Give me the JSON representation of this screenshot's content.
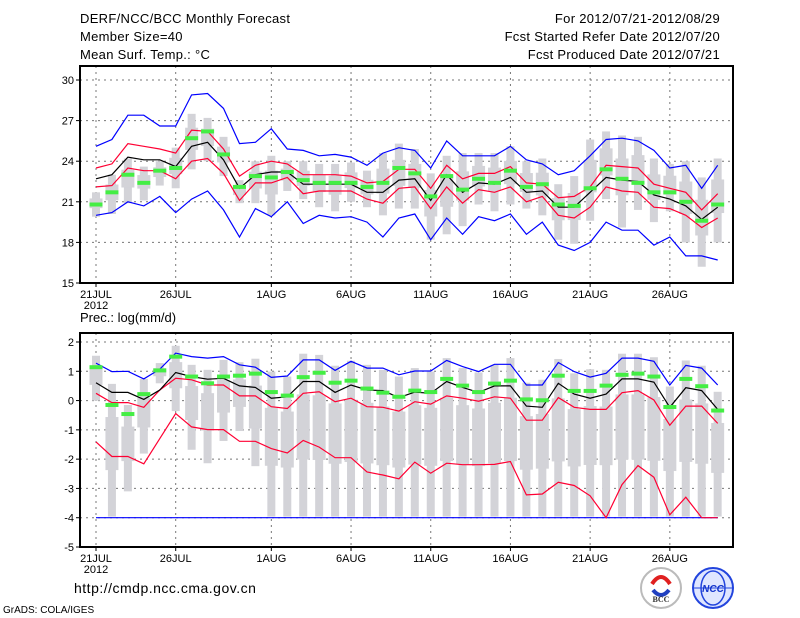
{
  "header": {
    "title": "DERF/NCC/BCC Monthly Forecast",
    "member_size": "Member Size=40",
    "variable": "Mean Surf. Temp.: °C",
    "period": "For 2012/07/21-2012/08/29",
    "refer_date": "Fcst Started Refer Date 2012/07/20",
    "produced_date": "Fcst Produced Date 2012/07/21"
  },
  "footer": {
    "url": "http://cmdp.ncc.cma.gov.cn",
    "grads": "GrADS: COLA/IGES",
    "logos": [
      "BCC",
      "NCC"
    ]
  },
  "colors": {
    "envelope": "#0000ff",
    "spread": "#ff0033",
    "mean": "#000000",
    "obs": "#44ee44",
    "box": "#d3d3d8"
  },
  "chart_data": [
    {
      "type": "line",
      "title": "Mean Surf. Temp.: °C",
      "ylim": [
        15,
        30
      ],
      "yticks": [
        "15",
        "18",
        "21",
        "24",
        "27",
        "30"
      ],
      "ytick_values": [
        15,
        18,
        21,
        24,
        27,
        30
      ],
      "xtick_labels": [
        "21JUL",
        "26JUL",
        "1AUG",
        "6AUG",
        "11AUG",
        "16AUG",
        "21AUG",
        "26AUG"
      ],
      "xtick_days": [
        0,
        5,
        11,
        16,
        21,
        26,
        31,
        36
      ],
      "year_label": "2012",
      "days": 40,
      "series": [
        {
          "name": "max",
          "color": "blue",
          "values": [
            25.1,
            25.6,
            27.4,
            27.4,
            26.6,
            26.6,
            28.9,
            29.0,
            27.9,
            25.3,
            25.4,
            26.4,
            24.9,
            24.8,
            24.4,
            24.5,
            24.3,
            23.7,
            24.6,
            25.0,
            24.8,
            23.5,
            25.5,
            24.4,
            24.4,
            24.4,
            25.1,
            24.1,
            23.8,
            23.0,
            23.3,
            24.4,
            25.6,
            25.7,
            25.5,
            24.8,
            23.5,
            23.7,
            22.0,
            23.7
          ]
        },
        {
          "name": "min",
          "color": "blue",
          "values": [
            20.0,
            20.2,
            21.0,
            20.7,
            21.4,
            20.2,
            21.2,
            21.8,
            20.4,
            18.4,
            20.5,
            19.9,
            21.0,
            19.4,
            20.0,
            19.8,
            19.9,
            19.5,
            18.4,
            19.8,
            20.1,
            18.2,
            19.8,
            18.6,
            19.9,
            19.6,
            20.1,
            18.6,
            19.5,
            17.8,
            17.4,
            18.0,
            19.5,
            18.9,
            18.9,
            17.8,
            18.4,
            17.0,
            17.0,
            16.7
          ]
        },
        {
          "name": "upper",
          "color": "red",
          "values": [
            23.5,
            23.8,
            25.3,
            25.1,
            24.9,
            24.6,
            26.3,
            26.2,
            24.9,
            22.9,
            23.7,
            24.0,
            23.8,
            23.0,
            23.0,
            23.0,
            22.9,
            22.4,
            22.5,
            23.4,
            23.4,
            22.0,
            23.7,
            22.7,
            23.1,
            23.1,
            23.6,
            22.4,
            22.3,
            21.3,
            21.4,
            22.1,
            23.7,
            23.6,
            23.5,
            22.3,
            22.0,
            21.7,
            20.4,
            21.6
          ]
        },
        {
          "name": "lower",
          "color": "red",
          "values": [
            22.1,
            22.2,
            23.5,
            23.3,
            23.3,
            22.7,
            24.0,
            24.2,
            23.1,
            21.1,
            22.4,
            22.4,
            22.8,
            21.6,
            21.8,
            21.8,
            21.8,
            21.2,
            20.9,
            22.0,
            22.1,
            20.5,
            22.1,
            20.9,
            21.9,
            21.7,
            22.1,
            21.0,
            21.4,
            20.0,
            19.8,
            20.6,
            22.1,
            21.8,
            21.7,
            20.6,
            20.5,
            20.0,
            19.1,
            19.8
          ]
        },
        {
          "name": "ensemble_mean",
          "color": "black",
          "values": [
            22.7,
            23.0,
            24.3,
            24.1,
            24.1,
            23.6,
            25.1,
            25.4,
            24.1,
            22.0,
            23.0,
            23.2,
            23.2,
            22.3,
            22.3,
            22.3,
            22.3,
            21.7,
            21.7,
            22.6,
            22.7,
            21.1,
            23.0,
            21.7,
            22.4,
            22.3,
            22.8,
            21.7,
            21.8,
            20.6,
            20.6,
            21.7,
            22.8,
            22.6,
            22.5,
            21.5,
            21.2,
            20.7,
            19.7,
            20.6
          ]
        },
        {
          "name": "observed",
          "color": "green",
          "values": [
            20.8,
            21.7,
            23.0,
            22.4,
            23.3,
            23.5,
            25.7,
            26.2,
            24.5,
            22.1,
            22.9,
            22.8,
            23.2,
            22.6,
            22.4,
            22.4,
            22.4,
            22.1,
            22.4,
            23.5,
            23.1,
            21.4,
            22.9,
            21.9,
            22.7,
            22.4,
            23.3,
            22.1,
            22.3,
            20.8,
            20.7,
            22.0,
            23.4,
            22.7,
            22.4,
            21.7,
            21.7,
            21.0,
            19.6,
            20.8
          ]
        }
      ],
      "member_range_high": [
        21.7,
        23.0,
        24.2,
        23.6,
        24.0,
        25.0,
        27.5,
        27.2,
        25.8,
        22.6,
        24.0,
        24.4,
        24.0,
        24.0,
        23.8,
        23.8,
        23.9,
        23.3,
        24.6,
        25.3,
        24.9,
        23.1,
        24.4,
        24.6,
        24.6,
        24.6,
        25.1,
        24.0,
        24.2,
        22.3,
        22.9,
        25.6,
        26.2,
        25.9,
        25.8,
        24.2,
        23.8,
        24.0,
        22.8,
        24.2
      ],
      "member_range_low": [
        19.9,
        20.1,
        20.9,
        21.1,
        22.2,
        22.0,
        23.4,
        24.0,
        22.9,
        20.9,
        20.9,
        20.0,
        21.8,
        21.2,
        20.6,
        20.3,
        21.0,
        20.6,
        20.0,
        20.5,
        20.5,
        18.2,
        18.6,
        19.2,
        20.8,
        20.3,
        20.8,
        20.5,
        20.0,
        18.2,
        17.9,
        19.6,
        21.2,
        19.1,
        20.4,
        19.5,
        20.3,
        18.0,
        16.2,
        18.0
      ]
    },
    {
      "type": "line",
      "title": "Prec.: log(mm/d)",
      "ylim": [
        -5,
        2
      ],
      "yticks": [
        "-5",
        "-4",
        "-3",
        "-2",
        "-1",
        "0",
        "1",
        "2"
      ],
      "ytick_values": [
        -5,
        -4,
        -3,
        -2,
        -1,
        0,
        1,
        2
      ],
      "xtick_labels": [
        "21JUL",
        "26JUL",
        "1AUG",
        "6AUG",
        "11AUG",
        "16AUG",
        "21AUG",
        "26AUG"
      ],
      "xtick_days": [
        0,
        5,
        11,
        16,
        21,
        26,
        31,
        36
      ],
      "year_label": "2012",
      "days": 40,
      "series": [
        {
          "name": "max",
          "color": "blue",
          "values": [
            1.28,
            0.99,
            1.0,
            0.74,
            1.07,
            1.62,
            1.5,
            1.45,
            1.5,
            1.22,
            1.14,
            0.79,
            0.84,
            1.39,
            1.39,
            1.03,
            1.34,
            1.11,
            1.11,
            0.88,
            1.01,
            1.01,
            1.37,
            1.16,
            0.99,
            1.24,
            1.24,
            0.53,
            0.53,
            1.3,
            0.99,
            0.8,
            0.93,
            1.45,
            1.45,
            1.34,
            0.53,
            1.2,
            1.11,
            0.53
          ]
        },
        {
          "name": "min",
          "color": "blue",
          "values": [
            -4,
            -4,
            -4,
            -4,
            -4,
            -4,
            -4,
            -4,
            -4,
            -4,
            -4,
            -4,
            -4,
            -4,
            -4,
            -4,
            -4,
            -4,
            -4,
            -4,
            -4,
            -4,
            -4,
            -4,
            -4,
            -4,
            -4,
            -4,
            -4,
            -4,
            -4,
            -4,
            -4,
            -4,
            -4,
            -4,
            -4,
            -4,
            -4,
            -4
          ]
        },
        {
          "name": "upper",
          "color": "red",
          "values": [
            0.25,
            -0.07,
            -0.07,
            -0.23,
            0.36,
            0.76,
            0.71,
            0.53,
            0.53,
            0.16,
            0.16,
            -0.21,
            -0.27,
            0.25,
            0.3,
            -0.04,
            0.08,
            -0.21,
            -0.23,
            -0.36,
            -0.04,
            -0.12,
            0.16,
            0.08,
            -0.02,
            0.13,
            0.08,
            -0.67,
            -0.67,
            0.1,
            -0.23,
            -0.3,
            -0.3,
            0.27,
            0.34,
            0.02,
            -0.84,
            -0.19,
            -0.19,
            -0.78
          ]
        },
        {
          "name": "lower",
          "color": "red",
          "values": [
            -1.41,
            -1.91,
            -1.91,
            -2.16,
            -1.3,
            -0.44,
            -0.9,
            -0.99,
            -0.99,
            -1.39,
            -1.39,
            -1.64,
            -1.79,
            -1.36,
            -1.59,
            -1.95,
            -1.95,
            -2.44,
            -2.54,
            -2.67,
            -2.1,
            -2.48,
            -2.14,
            -2.19,
            -2.19,
            -2.18,
            -2.08,
            -3.22,
            -3.19,
            -2.79,
            -2.9,
            -3.25,
            -4.0,
            -2.87,
            -2.22,
            -2.62,
            -3.9,
            -3.3,
            -4.0,
            -4.0
          ]
        },
        {
          "name": "ensemble_mean",
          "color": "black",
          "values": [
            0.61,
            0.28,
            0.28,
            0.04,
            0.36,
            0.96,
            0.82,
            0.73,
            0.76,
            0.5,
            0.45,
            0.08,
            0.13,
            0.65,
            0.65,
            0.28,
            0.53,
            0.36,
            0.34,
            0.1,
            0.29,
            0.25,
            0.65,
            0.45,
            0.28,
            0.5,
            0.5,
            -0.19,
            -0.23,
            0.59,
            0.22,
            0.08,
            0.22,
            0.74,
            0.74,
            0.63,
            -0.23,
            0.44,
            0.34,
            -0.3
          ]
        },
        {
          "name": "observed",
          "color": "green",
          "values": [
            1.14,
            -0.15,
            -0.46,
            0.22,
            1.03,
            1.5,
            0.82,
            0.59,
            0.82,
            0.85,
            0.92,
            0.29,
            0.17,
            0.8,
            0.95,
            0.61,
            0.68,
            0.41,
            0.27,
            0.13,
            0.34,
            0.29,
            0.74,
            0.51,
            0.29,
            0.58,
            0.68,
            0.04,
            0.01,
            0.85,
            0.33,
            0.33,
            0.51,
            0.88,
            0.92,
            0.82,
            -0.22,
            0.74,
            0.49,
            -0.34
          ]
        }
      ],
      "member_range_high": [
        1.53,
        0.57,
        -0.15,
        0.74,
        1.28,
        1.87,
        1.22,
        1.05,
        1.39,
        1.31,
        1.43,
        0.99,
        0.82,
        1.6,
        1.56,
        1.19,
        1.36,
        1.22,
        1.05,
        0.82,
        1.11,
        0.99,
        1.45,
        1.11,
        0.96,
        1.22,
        1.45,
        0.61,
        0.71,
        1.42,
        0.93,
        1.07,
        1.05,
        1.6,
        1.6,
        1.48,
        0.48,
        1.37,
        1.19,
        0.3
      ],
      "member_range_low": [
        0.0,
        -3.96,
        -3.1,
        -1.81,
        0.59,
        -0.36,
        -1.68,
        -2.14,
        -1.38,
        -1.04,
        -2.24,
        -3.96,
        -3.96,
        -3.96,
        -3.96,
        -3.96,
        -3.96,
        -3.96,
        -3.96,
        -3.96,
        -3.96,
        -3.96,
        -3.96,
        -3.96,
        -3.96,
        -3.96,
        -3.96,
        -3.96,
        -3.96,
        -3.96,
        -3.96,
        -3.96,
        -3.96,
        -3.96,
        -3.96,
        -3.96,
        -3.96,
        -3.96,
        -3.96,
        -3.96
      ]
    }
  ]
}
